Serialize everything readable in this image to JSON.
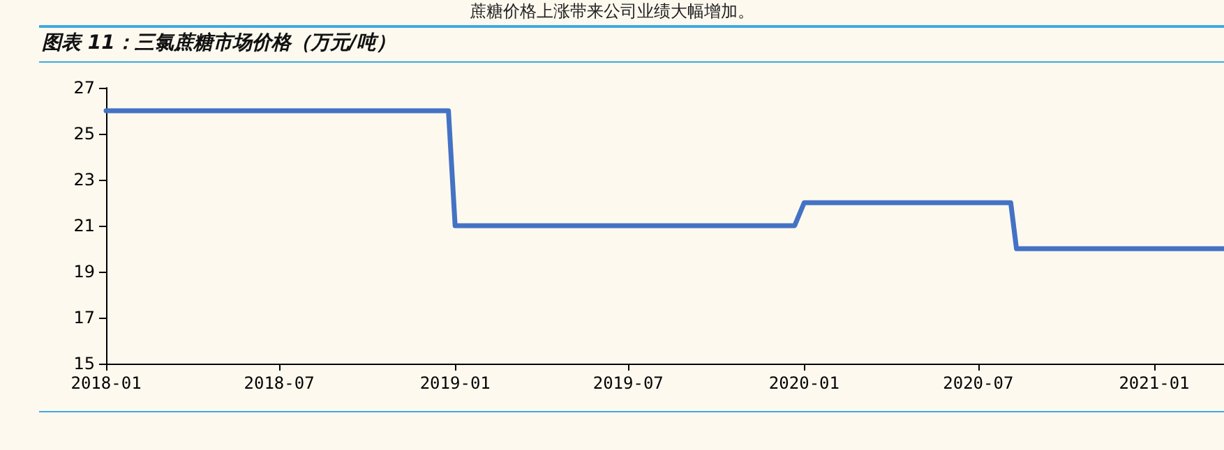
{
  "chart_data": {
    "type": "line",
    "title": "图表 11：三氯蔗糖市场价格（万元/吨）",
    "annotations": [
      "蔗糖价格上涨带来公司业绩大幅增加。"
    ],
    "x": [
      "2018-01-01",
      "2018-12-25",
      "2019-01-01",
      "2019-12-22",
      "2020-01-01",
      "2020-08-04",
      "2020-08-10",
      "2021-03-15"
    ],
    "series": [
      {
        "color": "#4472c4",
        "values": [
          26,
          26,
          21,
          21,
          22,
          22,
          20,
          20
        ]
      }
    ],
    "xlim": [
      "2018-01-01",
      "2021-03-15"
    ],
    "xticks": [
      "2018-01",
      "2018-07",
      "2019-01",
      "2019-07",
      "2020-01",
      "2020-07",
      "2021-01"
    ],
    "ylim": [
      15,
      27
    ],
    "yticks": [
      15,
      17,
      19,
      21,
      23,
      25,
      27
    ],
    "grid": false,
    "marker": "none",
    "line_style": "solid"
  }
}
